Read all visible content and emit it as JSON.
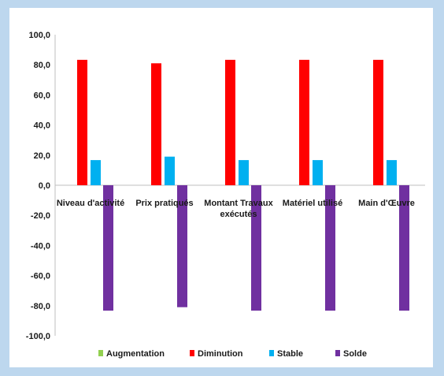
{
  "chart_data": {
    "type": "bar",
    "categories": [
      "Niveau d'activité",
      "Prix pratiqués",
      "Montant Travaux exécutés",
      "Matériel utilisé",
      "Main d'Œuvre"
    ],
    "category_lines": [
      [
        "Niveau d'activité"
      ],
      [
        "Prix pratiqués"
      ],
      [
        "Montant Travaux",
        "exécutés"
      ],
      [
        "Matériel utilisé"
      ],
      [
        "Main d'Œuvre"
      ]
    ],
    "series": [
      {
        "name": "Augmentation",
        "color": "#92d050",
        "values": [
          0,
          0,
          0,
          0,
          0
        ]
      },
      {
        "name": "Diminution",
        "color": "#ff0000",
        "values": [
          83.3,
          81.0,
          83.3,
          83.3,
          83.3
        ]
      },
      {
        "name": "Stable",
        "color": "#00b0f0",
        "values": [
          16.7,
          19.0,
          16.7,
          16.7,
          16.7
        ]
      },
      {
        "name": "Solde",
        "color": "#7030a0",
        "values": [
          -83.3,
          -81.0,
          -83.3,
          -83.3,
          -83.3
        ]
      }
    ],
    "ylim": [
      -100,
      100
    ],
    "yticks": [
      "100,0",
      "80,0",
      "60,0",
      "40,0",
      "20,0",
      "0,0",
      "-20,0",
      "-40,0",
      "-60,0",
      "-80,0",
      "-100,0"
    ],
    "ytick_values": [
      100,
      80,
      60,
      40,
      20,
      0,
      -20,
      -40,
      -60,
      -80,
      -100
    ],
    "title": "",
    "xlabel": "",
    "ylabel": "",
    "grid": false,
    "legend_position": "bottom"
  }
}
